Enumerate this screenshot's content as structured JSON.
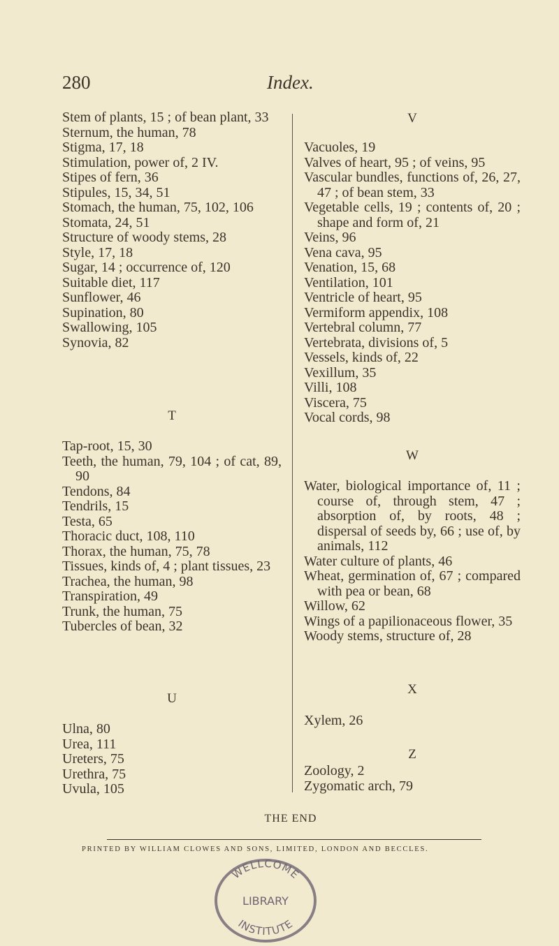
{
  "header": {
    "page_number": "280",
    "running_head": "Index."
  },
  "left_column": [
    {
      "letter": "",
      "entries": [
        "Stem of plants, 15 ; of bean plant, 33",
        "Sternum, the human, 78",
        "Stigma, 17, 18",
        "Stimulation, power of, 2 IV.",
        "Stipes of fern, 36",
        "Stipules, 15, 34, 51",
        "Stomach, the human, 75, 102, 106",
        "Stomata, 24, 51",
        "Structure of woody stems, 28",
        "Style, 17, 18",
        "Sugar, 14 ; occurrence of, 120",
        "Suitable diet, 117",
        "Sunflower, 46",
        "Supination, 80",
        "Swallowing, 105",
        "Synovia, 82"
      ]
    },
    {
      "letter": "T",
      "entries": [
        "Tap-root, 15, 30",
        "Teeth, the human, 79, 104 ; of cat, 89, 90",
        "Tendons, 84",
        "Tendrils, 15",
        "Testa, 65",
        "Thoracic duct, 108, 110",
        "Thorax, the human, 75, 78",
        "Tissues, kinds of, 4 ; plant tissues, 23",
        "Trachea, the human, 98",
        "Transpiration, 49",
        "Trunk, the human, 75",
        "Tubercles of bean, 32"
      ]
    },
    {
      "letter": "U",
      "entries": [
        "Ulna, 80",
        "Urea, 111",
        "Ureters, 75",
        "Urethra, 75",
        "Uvula, 105"
      ]
    }
  ],
  "right_column": [
    {
      "letter": "V",
      "entries": [
        "Vacuoles, 19",
        "Valves of heart, 95 ; of veins, 95",
        "Vascular bundles, functions of, 26, 27, 47 ; of bean stem, 33",
        "Vegetable cells, 19 ; contents of, 20 ; shape and form of, 21",
        "Veins, 96",
        "Vena cava, 95",
        "Venation, 15, 68",
        "Ventilation, 101",
        "Ventricle of heart, 95",
        "Vermiform appendix, 108",
        "Vertebral column, 77",
        "Vertebrata, divisions of, 5",
        "Vessels, kinds of, 22",
        "Vexillum, 35",
        "Villi, 108",
        "Viscera, 75",
        "Vocal cords, 98"
      ]
    },
    {
      "letter": "W",
      "entries": [
        "Water, biological importance of, 11 ; course of, through stem, 47 ; absorption of, by roots, 48 ; dispersal of seeds by, 66 ; use of, by animals, 112",
        "Water culture of plants, 46",
        "Wheat, germination of, 67 ; compared with pea or bean, 68",
        "Willow, 62",
        "Wings of a papilionaceous flower, 35",
        "Woody stems, structure of, 28"
      ]
    },
    {
      "letter": "X",
      "entries": [
        "Xylem, 26"
      ]
    },
    {
      "letter": "Z",
      "entries": [
        "Zoology, 2",
        "Zygomatic arch, 79"
      ]
    }
  ],
  "footer": {
    "the_end": "THE END",
    "printer": "PRINTED BY WILLIAM CLOWES AND SONS, LIMITED, LONDON AND BECCLES."
  },
  "stamp": {
    "top": "WELLCOME",
    "middle": "LIBRARY",
    "bottom": "INSTITUTE",
    "color": "#6d6470"
  }
}
